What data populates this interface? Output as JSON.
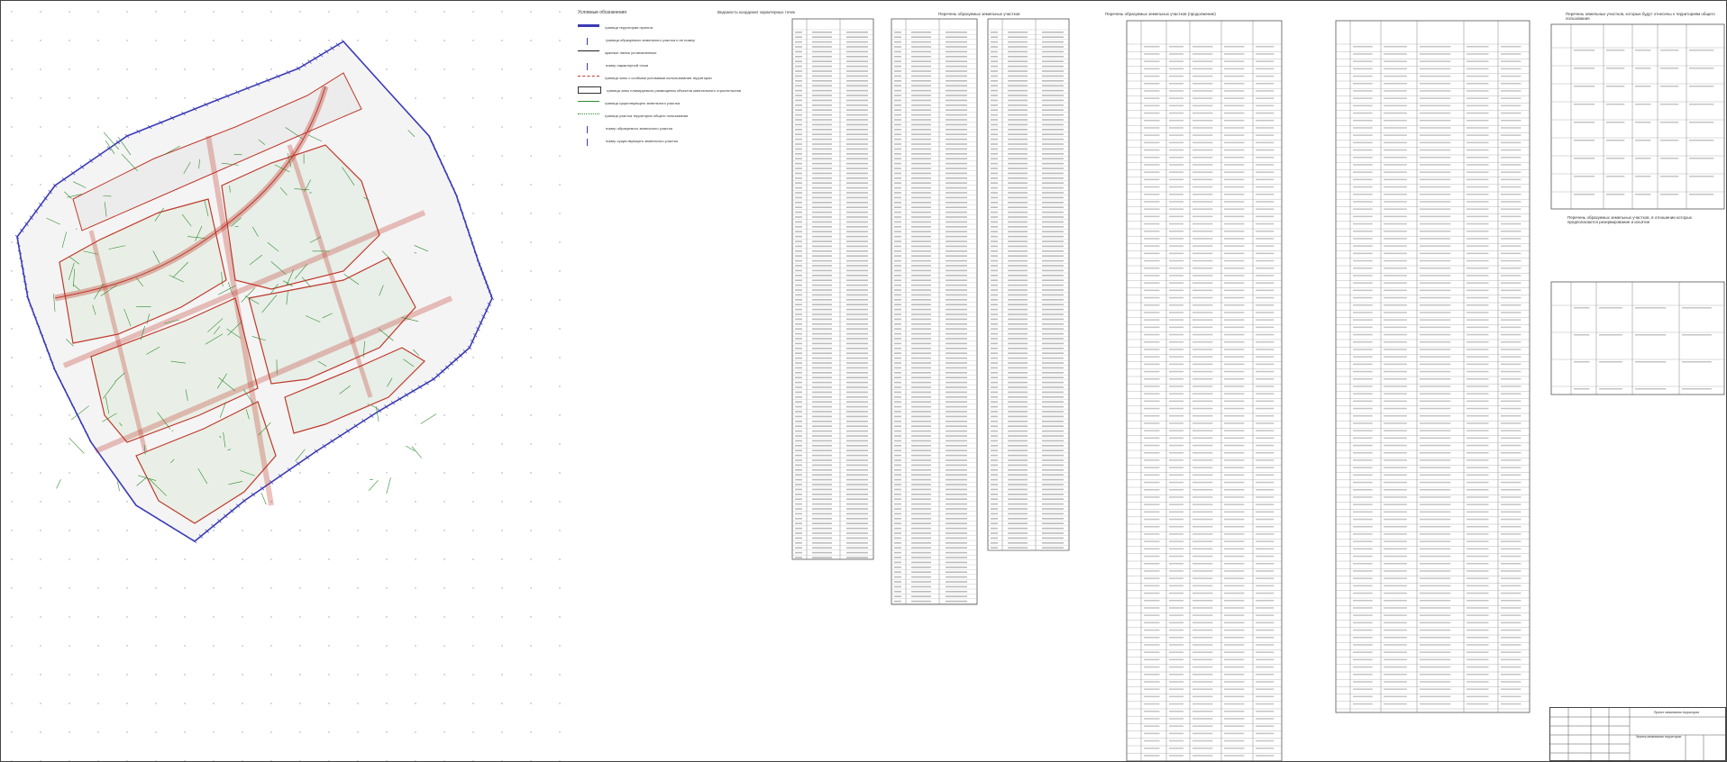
{
  "legend": {
    "title": "Условные обозначения",
    "items": [
      {
        "label": "граница территории проекта",
        "color": "#3b3bb5",
        "style": "thick"
      },
      {
        "label": "граница образуемого земельного участка и ее номер",
        "color": "#3b3bb5",
        "style": "hook"
      },
      {
        "label": "красные линии установленные",
        "color": "#222222",
        "style": "line"
      },
      {
        "label": "номер характерной точки",
        "color": "#3b3bb5",
        "style": "tick"
      },
      {
        "label": "граница зоны с особыми условиями использования территории",
        "color": "#c0392b",
        "style": "dashed"
      },
      {
        "label": "граница зоны планируемого размещения объектов капитального строительства",
        "color": "#333333",
        "style": "box"
      },
      {
        "label": "граница существующего земельного участка",
        "color": "#2e8b2e",
        "style": "line"
      },
      {
        "label": "граница участка территории общего пользования",
        "color": "#2e8b2e",
        "style": "dash"
      },
      {
        "label": "номер образуемого земельного участка",
        "color": "#3b3bb5",
        "style": "code"
      },
      {
        "label": "номер существующего земельного участка",
        "color": "#3b3bb5",
        "style": "slash"
      }
    ]
  },
  "captions": {
    "coords": "Ведомость координат характерных точек",
    "table1": "Перечень образуемых земельных участков",
    "table2": "Перечень образуемых земельных участков (продолжение)",
    "table3": "Перечень земельных участков, которые будут отнесены к территориям общего пользования",
    "table4": "Перечень образуемых земельных участков, в отношении которых предполагаются резервирование и изъятие"
  },
  "stamp": {
    "organization": "Проект межевания территории",
    "sheet_name": "Чертеж межевания территории"
  },
  "colors": {
    "blue": "#3b3bb5",
    "red": "#c0392b",
    "green": "#2e8b2e",
    "grey": "#555555",
    "grid_dot": "#9aa0b5"
  }
}
